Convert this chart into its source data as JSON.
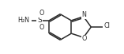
{
  "bg_color": "#ffffff",
  "line_color": "#2a2a2a",
  "line_width": 1.1,
  "text_color": "#2a2a2a",
  "figsize": [
    1.57,
    0.68
  ],
  "dpi": 100,
  "xlim": [
    0,
    10
  ],
  "ylim": [
    0,
    4.3
  ],
  "font_size": 5.8,
  "font_size_S": 6.5
}
